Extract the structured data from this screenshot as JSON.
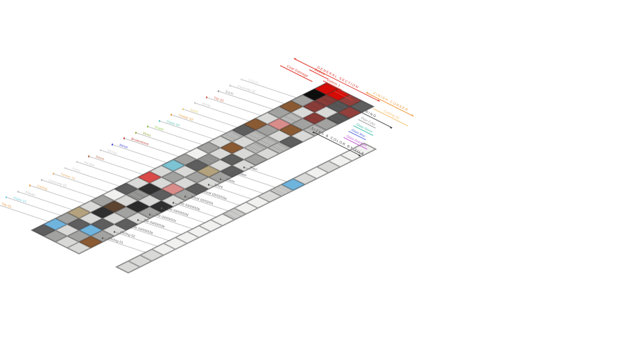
{
  "canvas": {
    "bg": "#ffffff"
  },
  "palette": {
    "WH": "#f1f1f0",
    "LG": "#d9d9d8",
    "MG": "#a2a2a1",
    "DG": "#5e5e5e",
    "XD": "#2f2f2f",
    "BLK": "#0e0e0e",
    "HG": "#c6c6c5",
    "BLU": "#6fb4dd",
    "TEA": "#7cc3d3",
    "RED": "#d94b48",
    "CRM": "#d40b06",
    "SLM": "#d98d8a",
    "MAR": "#93403c",
    "BRN": "#8a5a33",
    "DBR": "#5c4430",
    "TAN": "#b3a27d",
    "LWH": "#f0f0ef"
  },
  "upper_strip": {
    "rows": 4,
    "cols": 25,
    "cells": [
      [
        "DG",
        "BLU",
        "MG",
        "TAN",
        "LG",
        "MG",
        "WH",
        "DG",
        "LG",
        "RED",
        "LG",
        "TEA",
        "MG",
        "WH",
        "MG",
        "LG",
        "HGh",
        "DG",
        "BRN",
        "LG",
        "MG",
        "BRN",
        "MG",
        "BLK",
        "CRM"
      ],
      [
        "MG",
        "LG",
        "DG",
        "LG",
        "XD",
        "DBR",
        "LG",
        "MGh",
        "XD",
        "LG",
        "MG",
        "LG",
        "DG",
        "MGh",
        "LG",
        "BRN",
        "LG",
        "HGh",
        "MG",
        "SLM",
        "HGh",
        "LG",
        "MARh",
        "MARh",
        "CRM"
      ],
      [
        "LG",
        "MG",
        "BLU",
        "DG",
        "LG",
        "MG",
        "XDh",
        "LG",
        "DG",
        "SLM",
        "LG",
        "MG",
        "TAN",
        "LG",
        "DG",
        "LG",
        "HGh",
        "HGh",
        "LG",
        "BRN",
        "MG",
        "MARh",
        "LG",
        "DGh",
        "MAR"
      ],
      [
        "LG",
        "BRN",
        "MG",
        "LG",
        "DG",
        "LG",
        "MG",
        "XD",
        "LG",
        "MG",
        "DG",
        "LG",
        "MG",
        "DG",
        "LG",
        "MG",
        "LG",
        "HGh",
        "DG",
        "LG",
        "HGh",
        "MG",
        "DGh",
        "MAR",
        "DG"
      ]
    ],
    "leader_labels": [
      {
        "text": "Tile 01",
        "color": "#e8923a"
      },
      {
        "text": "Glass 01",
        "color": "#6ecfe0"
      },
      {
        "text": "Plaster",
        "color": "#c2c2c2"
      },
      {
        "text": "Ceiling",
        "color": "#f0a24b"
      },
      {
        "text": "Concrete 01",
        "color": "#bdbdbd"
      },
      {
        "text": "Timber 01",
        "color": "#e8b06a"
      },
      {
        "text": "Paint",
        "color": "#d2d2d2"
      },
      {
        "text": "Render",
        "color": "#c9c9c9"
      },
      {
        "text": "Resin",
        "color": "#b46a4a"
      },
      {
        "text": "Mortar",
        "color": "#cfcfcf"
      },
      {
        "text": "Metal",
        "color": "#4a4ae0"
      },
      {
        "text": "Brownstone",
        "color": "#c04038"
      },
      {
        "text": "Moss",
        "color": "#9aa83a"
      },
      {
        "text": "Grass",
        "color": "#8cc63f"
      },
      {
        "text": "Glass 02",
        "color": "#5ec8b8"
      },
      {
        "text": "Timber 02",
        "color": "#e89a3a"
      },
      {
        "text": "Sand",
        "color": "#e2cd6d"
      },
      {
        "text": "Stone",
        "color": "#c6c6c6"
      },
      {
        "text": "Tile 02",
        "color": "#d85a4a"
      },
      {
        "text": "Earth",
        "color": "#9a9a9a"
      },
      {
        "text": "Concrete 02",
        "color": "#c4c4c4"
      },
      {
        "text": "Gravel",
        "color": "#d8d8d8"
      }
    ]
  },
  "lower_strip": {
    "rows": 1,
    "cols": 21,
    "cells": [
      [
        "LG",
        "LG",
        "LG",
        "WH",
        "WH",
        "WH",
        "WH",
        "WH",
        "WH",
        "LGh",
        "WH",
        "WH",
        "LG",
        "LGh",
        "BLU",
        "LG",
        "WH",
        "LG",
        "WH",
        "WH",
        "WH"
      ]
    ],
    "leader_labels": [
      {
        "text": "Ceiling 01",
        "color": "#5a5a5a"
      },
      {
        "text": "Ceiling 02",
        "color": "#5a5a5a"
      },
      {
        "text": "Tile 03/03/03a",
        "color": "#5a5a5a"
      },
      {
        "text": "Tile 03/03/03b",
        "color": "#5a5a5a"
      },
      {
        "text": "Tile 03/03/03c",
        "color": "#5a5a5a"
      },
      {
        "text": "Tile 03/03/03d",
        "color": "#5a5a5a"
      },
      {
        "text": "Tile 03/03/03e",
        "color": "#5a5a5a"
      },
      {
        "text": "Wood 03/03/03",
        "color": "#5a5a5a"
      },
      {
        "text": "Wood 03/03/03a",
        "color": "#5a5a5a"
      },
      {
        "text": "White",
        "color": "#5a5a5a"
      },
      {
        "text": "Glass",
        "color": "#5a5a5a"
      },
      {
        "text": "Water",
        "color": "#5a5a5a"
      },
      {
        "text": "Plain",
        "color": "#5a5a5a"
      }
    ]
  },
  "annotations": {
    "general_section": {
      "text": "GENERAL SECTION",
      "color": "#e03a2f"
    },
    "coal_damage": {
      "text": "Coal Damage",
      "color": "#e03a2f"
    },
    "debris_labels": [
      {
        "text": "Debris",
        "color": "#e03a2f"
      },
      {
        "text": "Debris 1",
        "color": "#e03a2f"
      },
      {
        "text": "Debris 2",
        "color": "#e03a2f"
      }
    ],
    "finish_corner": {
      "text": "FINISH CORNER",
      "color": "#f49a3c"
    },
    "ceiling_sub": {
      "text": "Ceiling 02",
      "color": "#f8c271"
    },
    "ring": {
      "text": "RING",
      "color": "#474747",
      "items": [
        {
          "text": "Plain Color",
          "color": "#9a9a9a"
        },
        {
          "text": "Glass Green",
          "color": "#3dbfa8"
        },
        {
          "text": "Glass Blue",
          "color": "#5a6ee0"
        },
        {
          "text": "Glass Amethyst",
          "color": "#c05ad0"
        }
      ]
    },
    "sizes_line": {
      "text": "SIZES & COLOR BY TILE",
      "color": "#474747"
    }
  }
}
